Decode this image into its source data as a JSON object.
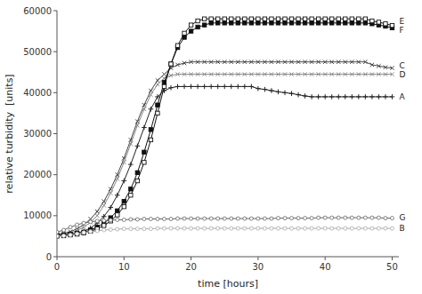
{
  "chart_data": {
    "type": "line",
    "title": "",
    "xlabel": "time [hours]",
    "ylabel": "relative turbidity  [units]",
    "xlim": [
      0,
      51
    ],
    "ylim": [
      0,
      60000
    ],
    "xticks": [
      0,
      10,
      20,
      30,
      40,
      50
    ],
    "yticks": [
      0,
      10000,
      20000,
      30000,
      40000,
      50000,
      60000
    ],
    "grid": false,
    "label_x": 50.8,
    "x": [
      0,
      1,
      2,
      3,
      4,
      5,
      6,
      7,
      8,
      9,
      10,
      11,
      12,
      13,
      14,
      15,
      16,
      17,
      18,
      19,
      20,
      21,
      22,
      23,
      24,
      25,
      26,
      27,
      28,
      29,
      30,
      31,
      32,
      33,
      34,
      35,
      36,
      37,
      38,
      39,
      40,
      41,
      42,
      43,
      44,
      45,
      46,
      47,
      48,
      49,
      50
    ],
    "series": [
      {
        "name": "C",
        "color": "#444444",
        "marker": "x",
        "line_style": "solid",
        "label_y": 46500,
        "values": [
          5500,
          5700,
          6100,
          6800,
          7800,
          9200,
          11000,
          13500,
          16500,
          20000,
          24000,
          28500,
          33000,
          37000,
          40500,
          43000,
          44500,
          46000,
          46800,
          47200,
          47500,
          47500,
          47500,
          47500,
          47500,
          47500,
          47500,
          47500,
          47500,
          47500,
          47500,
          47500,
          47500,
          47500,
          47500,
          47500,
          47500,
          47500,
          47500,
          47500,
          47500,
          47500,
          47500,
          47500,
          47500,
          47500,
          47500,
          46800,
          46500,
          46200,
          46000
        ]
      },
      {
        "name": "D",
        "color": "#888888",
        "marker": "x",
        "line_style": "solid",
        "label_y": 44500,
        "values": [
          5300,
          5500,
          5800,
          6400,
          7200,
          8400,
          10000,
          12500,
          15500,
          19000,
          23000,
          27500,
          32000,
          36000,
          39500,
          42000,
          43500,
          44200,
          44500,
          44500,
          44500,
          44500,
          44500,
          44500,
          44500,
          44500,
          44500,
          44500,
          44500,
          44500,
          44500,
          44500,
          44500,
          44500,
          44500,
          44500,
          44500,
          44500,
          44500,
          44500,
          44500,
          44500,
          44500,
          44500,
          44500,
          44500,
          44500,
          44500,
          44500,
          44500,
          44500
        ]
      },
      {
        "name": "A",
        "color": "#222222",
        "marker": "plus",
        "line_style": "solid",
        "label_y": 39000,
        "values": [
          5200,
          5300,
          5500,
          5800,
          6200,
          7000,
          8200,
          9800,
          12000,
          15000,
          18500,
          22500,
          27000,
          31500,
          36000,
          39000,
          40500,
          41200,
          41500,
          41500,
          41500,
          41500,
          41500,
          41500,
          41500,
          41500,
          41500,
          41500,
          41500,
          41500,
          41000,
          40800,
          40500,
          40200,
          40000,
          39800,
          39500,
          39200,
          39000,
          39000,
          39000,
          39000,
          39000,
          39000,
          39000,
          39000,
          39000,
          39000,
          39000,
          39000,
          39000
        ]
      },
      {
        "name": "F",
        "color": "#111111",
        "marker": "square",
        "line_style": "solid",
        "label_y": 55200,
        "values": [
          5200,
          5300,
          5500,
          5700,
          6000,
          6500,
          7200,
          8200,
          9500,
          11200,
          13500,
          16500,
          20500,
          25500,
          31000,
          37000,
          42500,
          47000,
          51000,
          53500,
          55000,
          56000,
          56500,
          57000,
          57000,
          57000,
          57000,
          57000,
          57000,
          57000,
          57000,
          57000,
          57000,
          57000,
          57000,
          57000,
          57000,
          57000,
          57000,
          57000,
          57000,
          57000,
          57000,
          57000,
          57000,
          57000,
          57000,
          56800,
          56500,
          56200,
          55800
        ]
      },
      {
        "name": "E",
        "color": "#111111",
        "marker": "square-open",
        "line_style": "solid",
        "label_y": 57500,
        "values": [
          5000,
          5100,
          5300,
          5500,
          5800,
          6200,
          6800,
          7600,
          8700,
          10200,
          12200,
          15000,
          18500,
          23000,
          28500,
          35000,
          41500,
          47000,
          51500,
          54500,
          56500,
          57500,
          58000,
          58000,
          58000,
          58000,
          58000,
          58000,
          58000,
          58000,
          58000,
          58000,
          58000,
          58000,
          58000,
          58000,
          58000,
          58000,
          58000,
          58000,
          58000,
          58000,
          58000,
          58000,
          58000,
          58000,
          58000,
          57500,
          57200,
          56800,
          56400
        ]
      },
      {
        "name": "G",
        "color": "#666666",
        "marker": "circle-open",
        "line_style": "solid",
        "label_y": 9500,
        "values": [
          6000,
          6500,
          7200,
          7800,
          8200,
          8500,
          8700,
          8800,
          8900,
          9000,
          9000,
          9100,
          9100,
          9200,
          9200,
          9200,
          9200,
          9200,
          9300,
          9300,
          9300,
          9300,
          9300,
          9300,
          9300,
          9300,
          9300,
          9300,
          9300,
          9300,
          9300,
          9300,
          9300,
          9400,
          9400,
          9400,
          9400,
          9400,
          9400,
          9500,
          9500,
          9500,
          9500,
          9500,
          9500,
          9500,
          9500,
          9500,
          9500,
          9400,
          9400
        ]
      },
      {
        "name": "B",
        "color": "#aaaaaa",
        "marker": "circle-open",
        "line_style": "solid",
        "label_y": 6900,
        "values": [
          5000,
          5100,
          5300,
          5600,
          5900,
          6100,
          6300,
          6500,
          6600,
          6700,
          6800,
          6800,
          6800,
          6800,
          6800,
          6900,
          6900,
          6900,
          6900,
          6900,
          6900,
          6900,
          6900,
          6900,
          6900,
          6900,
          6900,
          6900,
          6900,
          6900,
          6900,
          6900,
          6900,
          6900,
          6900,
          6900,
          6900,
          6900,
          6900,
          6900,
          6900,
          6900,
          6900,
          6900,
          6900,
          6900,
          6900,
          6900,
          6900,
          6900,
          6900
        ]
      }
    ]
  }
}
